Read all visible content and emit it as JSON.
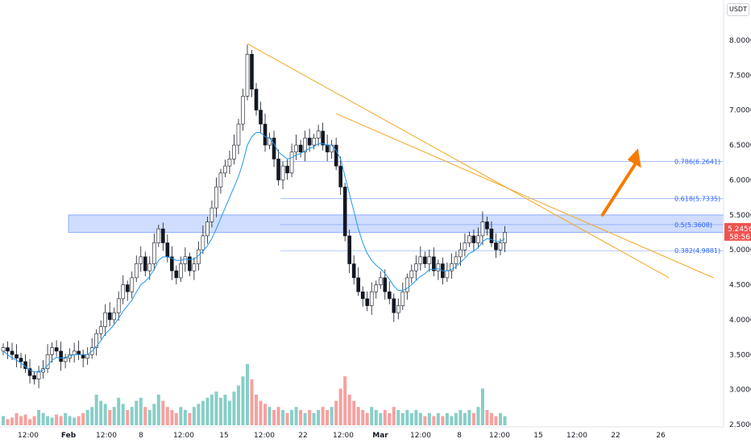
{
  "currency": "USDT",
  "chart_data": {
    "type": "candlestick",
    "y_axis": {
      "ticks": [
        "8.0000",
        "7.5000",
        "7.0000",
        "6.5000",
        "6.0000",
        "5.5000",
        "5.0000",
        "4.5000",
        "4.0000",
        "3.5000",
        "3.0000",
        "2.5000"
      ],
      "ylim": [
        2.5,
        8.0
      ]
    },
    "x_axis": {
      "ticks": [
        "12:00",
        "Feb",
        "12:00",
        "8",
        "12:00",
        "15",
        "12:00",
        "22",
        "12:00",
        "Mar",
        "12:00",
        "8",
        "12:00",
        "15",
        "12:00",
        "22",
        "26"
      ]
    },
    "current_price": {
      "value": "5.2456",
      "countdown": "58:56",
      "color": "#ef5350"
    },
    "fib_levels": [
      {
        "label": "0.786(6.2641)",
        "value": 6.2641
      },
      {
        "label": "0.618(5.7335)",
        "value": 5.7335
      },
      {
        "label": "0.5(5.3608)",
        "value": 5.3608
      },
      {
        "label": "0.382(4.9881)",
        "value": 4.9881
      }
    ],
    "resistance_zone": {
      "from": 5.25,
      "to": 5.5,
      "color": "#2962ff"
    },
    "close_series": [
      3.6,
      3.55,
      3.5,
      3.45,
      3.4,
      3.3,
      3.2,
      3.15,
      3.25,
      3.3,
      3.5,
      3.6,
      3.55,
      3.4,
      3.45,
      3.5,
      3.55,
      3.5,
      3.45,
      3.5,
      3.6,
      3.8,
      3.9,
      4.1,
      4.0,
      4.1,
      4.3,
      4.5,
      4.4,
      4.6,
      4.8,
      4.9,
      4.7,
      4.8,
      5.1,
      5.3,
      5.1,
      4.9,
      4.7,
      4.6,
      4.8,
      4.9,
      4.7,
      4.8,
      5.0,
      5.2,
      5.4,
      5.6,
      5.9,
      6.1,
      6.2,
      6.3,
      6.5,
      6.8,
      7.2,
      7.8,
      7.3,
      7.0,
      6.8,
      6.5,
      6.6,
      6.3,
      6.0,
      6.2,
      6.1,
      6.4,
      6.5,
      6.4,
      6.6,
      6.5,
      6.6,
      6.7,
      6.5,
      6.4,
      6.5,
      6.2,
      5.9,
      5.2,
      4.8,
      4.6,
      4.4,
      4.3,
      4.2,
      4.4,
      4.5,
      4.6,
      4.4,
      4.3,
      4.1,
      4.2,
      4.4,
      4.6,
      4.7,
      4.8,
      4.9,
      4.8,
      4.9,
      4.7,
      4.8,
      4.6,
      4.7,
      4.8,
      4.9,
      5.0,
      5.1,
      5.2,
      5.1,
      5.2,
      5.4,
      5.3,
      5.1,
      5.0,
      5.1,
      5.25
    ],
    "ma_series": [
      3.55,
      3.5,
      3.45,
      3.42,
      3.38,
      3.33,
      3.28,
      3.25,
      3.26,
      3.28,
      3.35,
      3.42,
      3.46,
      3.45,
      3.46,
      3.48,
      3.5,
      3.5,
      3.5,
      3.5,
      3.55,
      3.62,
      3.7,
      3.8,
      3.86,
      3.93,
      4.02,
      4.12,
      4.2,
      4.28,
      4.4,
      4.5,
      4.55,
      4.62,
      4.72,
      4.85,
      4.9,
      4.9,
      4.88,
      4.85,
      4.85,
      4.87,
      4.86,
      4.87,
      4.92,
      4.98,
      5.06,
      5.16,
      5.3,
      5.45,
      5.6,
      5.75,
      5.9,
      6.05,
      6.25,
      6.5,
      6.62,
      6.68,
      6.68,
      6.62,
      6.6,
      6.52,
      6.4,
      6.35,
      6.3,
      6.32,
      6.36,
      6.38,
      6.42,
      6.45,
      6.48,
      6.52,
      6.52,
      6.5,
      6.5,
      6.42,
      6.3,
      6.05,
      5.8,
      5.55,
      5.3,
      5.1,
      4.95,
      4.85,
      4.78,
      4.73,
      4.66,
      4.58,
      4.48,
      4.42,
      4.42,
      4.45,
      4.5,
      4.56,
      4.62,
      4.66,
      4.72,
      4.72,
      4.73,
      4.7,
      4.7,
      4.72,
      4.76,
      4.82,
      4.88,
      4.95,
      4.98,
      5.03,
      5.12,
      5.16,
      5.15,
      5.12,
      5.12,
      5.16
    ],
    "volume_series": [
      0.3,
      0.2,
      0.25,
      0.4,
      0.3,
      0.35,
      0.2,
      0.3,
      0.5,
      0.4,
      0.3,
      0.25,
      0.35,
      0.3,
      0.4,
      0.3,
      0.25,
      0.3,
      0.4,
      0.5,
      0.6,
      1.0,
      0.8,
      0.7,
      0.5,
      0.6,
      0.9,
      0.7,
      0.5,
      0.6,
      0.8,
      0.9,
      0.6,
      0.5,
      0.7,
      1.0,
      0.8,
      0.6,
      0.5,
      0.4,
      0.6,
      0.5,
      0.4,
      0.6,
      0.7,
      0.8,
      0.9,
      1.0,
      1.1,
      0.9,
      1.0,
      0.8,
      1.1,
      1.3,
      1.6,
      2.0,
      1.5,
      1.0,
      0.8,
      0.7,
      0.6,
      0.5,
      0.6,
      0.5,
      0.4,
      0.5,
      0.6,
      0.5,
      0.4,
      0.5,
      0.4,
      0.5,
      0.6,
      0.5,
      0.6,
      0.8,
      1.2,
      1.6,
      1.0,
      0.8,
      0.6,
      0.5,
      0.4,
      0.6,
      0.5,
      0.4,
      0.5,
      0.4,
      0.6,
      0.5,
      0.4,
      0.5,
      0.4,
      0.5,
      0.4,
      0.3,
      0.4,
      0.3,
      0.4,
      0.3,
      0.4,
      0.3,
      0.4,
      0.5,
      0.4,
      0.5,
      0.4,
      0.6,
      1.2,
      0.5,
      0.4,
      0.3,
      0.4,
      0.3
    ],
    "trendlines": [
      {
        "from": {
          "bar": 55,
          "price": 7.95
        },
        "to": {
          "bar": 150,
          "price": 4.6
        },
        "color": "#f5a623"
      },
      {
        "from": {
          "bar": 75,
          "price": 6.95
        },
        "to": {
          "bar": 160,
          "price": 4.6
        },
        "color": "#f5a623"
      }
    ],
    "arrow": {
      "from": {
        "bar": 135,
        "price": 5.5
      },
      "to": {
        "bar": 143,
        "price": 6.45
      },
      "color": "#f57c00"
    }
  }
}
